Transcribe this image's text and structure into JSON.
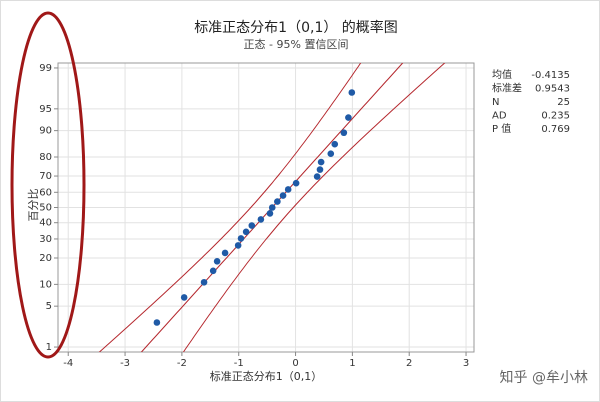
{
  "chart_data": {
    "type": "probability",
    "scale": "normal-probability",
    "title": "标准正态分布1（0,1） 的概率图",
    "subtitle": "正态 - 95% 置信区间",
    "x_label": "标准正态分布1（0,1）",
    "y_label": "百分比",
    "xlim": [
      -4.18,
      3.14
    ],
    "xticks": [
      -4,
      -3,
      -2,
      -1,
      0,
      1,
      2,
      3
    ],
    "ylim": [
      0.8,
      99.2
    ],
    "yticks": [
      1,
      5,
      10,
      20,
      30,
      40,
      50,
      60,
      70,
      80,
      90,
      95,
      99
    ],
    "grid": true,
    "color": "#1f5aa6",
    "line_color": "#b5282e",
    "x": [
      -2.44,
      -1.96,
      -1.61,
      -1.45,
      -1.38,
      -1.24,
      -1.01,
      -0.96,
      -0.87,
      -0.77,
      -0.61,
      -0.45,
      -0.41,
      -0.32,
      -0.22,
      -0.13,
      0.01,
      0.38,
      0.43,
      0.45,
      0.62,
      0.69,
      0.85,
      0.93,
      0.99
    ],
    "values": [
      2.76,
      6.69,
      10.63,
      14.57,
      18.5,
      22.44,
      26.38,
      30.31,
      34.25,
      38.19,
      42.13,
      46.06,
      50,
      53.94,
      57.87,
      61.81,
      65.75,
      69.69,
      73.62,
      77.56,
      81.5,
      85.43,
      89.37,
      93.31,
      97.24
    ],
    "stats": [
      {
        "label": "均值",
        "value": -0.4135
      },
      {
        "label": "标准差",
        "value": 0.9543
      },
      {
        "label": "N",
        "value": 25
      },
      {
        "label": "AD",
        "value": 0.235
      },
      {
        "label": "P 值",
        "value": 0.769
      }
    ]
  },
  "watermark": "知乎 @牟小林"
}
